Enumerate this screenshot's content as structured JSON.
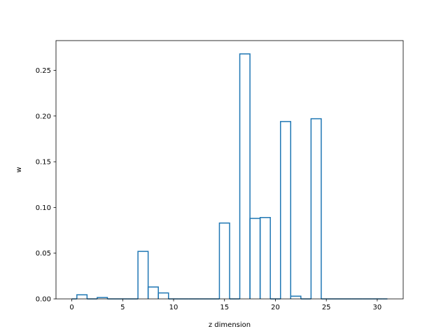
{
  "chart_data": {
    "type": "bar",
    "style": "step-histogram",
    "xlabel": "z dimension",
    "ylabel": "w",
    "xlim": [
      -1.55,
      32.55
    ],
    "ylim": [
      0,
      0.2825
    ],
    "xticks": [
      0,
      5,
      10,
      15,
      20,
      25,
      30
    ],
    "xtick_labels": [
      "0",
      "5",
      "10",
      "15",
      "20",
      "25",
      "30"
    ],
    "yticks": [
      0.0,
      0.05,
      0.1,
      0.15,
      0.2,
      0.25
    ],
    "ytick_labels": [
      "0.00",
      "0.05",
      "0.10",
      "0.15",
      "0.20",
      "0.25"
    ],
    "grid": false,
    "bin_edges": [
      0.0,
      0.5,
      1.5,
      2.5,
      3.5,
      4.5,
      5.5,
      6.5,
      7.5,
      8.5,
      9.5,
      10.5,
      11.5,
      12.5,
      13.5,
      14.5,
      15.5,
      16.5,
      17.5,
      18.5,
      19.5,
      20.5,
      21.5,
      22.5,
      23.5,
      24.5,
      25.5,
      26.5,
      27.5,
      28.5,
      29.5,
      30.5,
      31.0
    ],
    "values": [
      0.0,
      0.0045,
      0.0,
      0.0015,
      0.0,
      0.0,
      0.0,
      0.052,
      0.013,
      0.0065,
      0.0,
      0.0,
      0.0,
      0.0,
      0.0,
      0.083,
      0.0,
      0.268,
      0.088,
      0.089,
      0.0,
      0.194,
      0.003,
      0.0,
      0.197,
      0.0,
      0.0,
      0.0,
      0.0,
      0.0,
      0.0,
      0.0
    ],
    "line_color": "#1f77b4"
  }
}
